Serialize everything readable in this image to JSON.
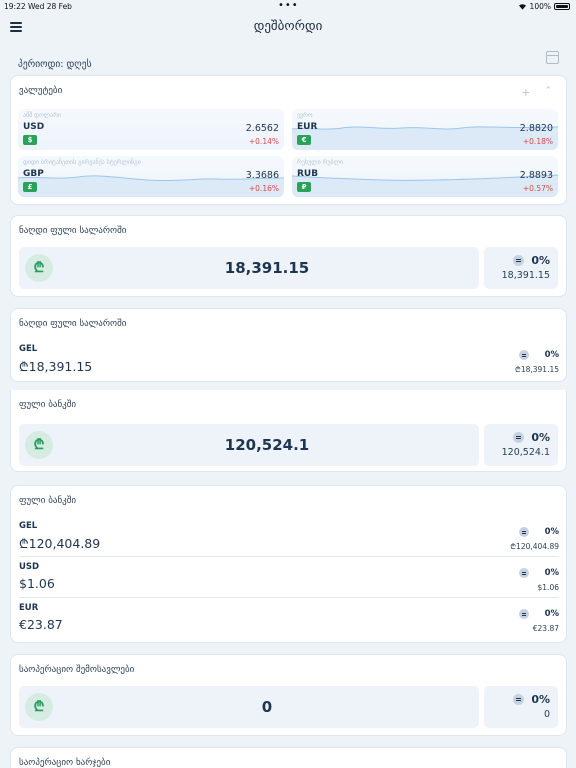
{
  "status": {
    "time": "19:22",
    "date": "Wed 28 Feb",
    "battery": "100%"
  },
  "header": {
    "title": "დეშბორდი"
  },
  "period": {
    "label": "პერიოდი: დღეს"
  },
  "currencies": {
    "title": "ვალუტები",
    "add": "+",
    "sort": "⌃⌄",
    "items": [
      {
        "name": "აშშ დოლარი",
        "code": "USD",
        "symbol": "$",
        "rate": "2.6562",
        "change": "+0.14%"
      },
      {
        "name": "ევრო",
        "code": "EUR",
        "symbol": "€",
        "rate": "2.8820",
        "change": "+0.18%"
      },
      {
        "name": "დიდი ბრიტანეთის გირვანქა სტერლინგი",
        "code": "GBP",
        "symbol": "£",
        "rate": "3.3686",
        "change": "+0.16%"
      },
      {
        "name": "რუსული რუბლი",
        "code": "RUB",
        "symbol": "₽",
        "rate": "2.8893",
        "change": "+0.57%"
      }
    ]
  },
  "cash_summary": {
    "title": "ნაღდი ფული სალაროში",
    "symbol": "₾",
    "value": "18,391.15",
    "pct": "0%",
    "amount": "18,391.15"
  },
  "cash_breakdown": {
    "title": "ნაღდი ფული სალაროში",
    "rows": [
      {
        "currency": "GEL",
        "amount": "₾18,391.15",
        "pct": "0%",
        "small": "₾18,391.15"
      }
    ]
  },
  "bank_summary": {
    "title": "ფული ბანკში",
    "symbol": "₾",
    "value": "120,524.1",
    "pct": "0%",
    "amount": "120,524.1"
  },
  "bank_breakdown": {
    "title": "ფული ბანკში",
    "rows": [
      {
        "currency": "GEL",
        "amount": "₾120,404.89",
        "pct": "0%",
        "small": "₾120,404.89"
      },
      {
        "currency": "USD",
        "amount": "$1.06",
        "pct": "0%",
        "small": "$1.06"
      },
      {
        "currency": "EUR",
        "amount": "€23.87",
        "pct": "0%",
        "small": "€23.87"
      }
    ]
  },
  "op_income": {
    "title": "საოპერაციო შემოსავლები",
    "symbol": "₾",
    "value": "0",
    "pct": "0%",
    "amount": "0"
  },
  "op_expenses": {
    "title": "საოპერაციო ხარჯები"
  }
}
